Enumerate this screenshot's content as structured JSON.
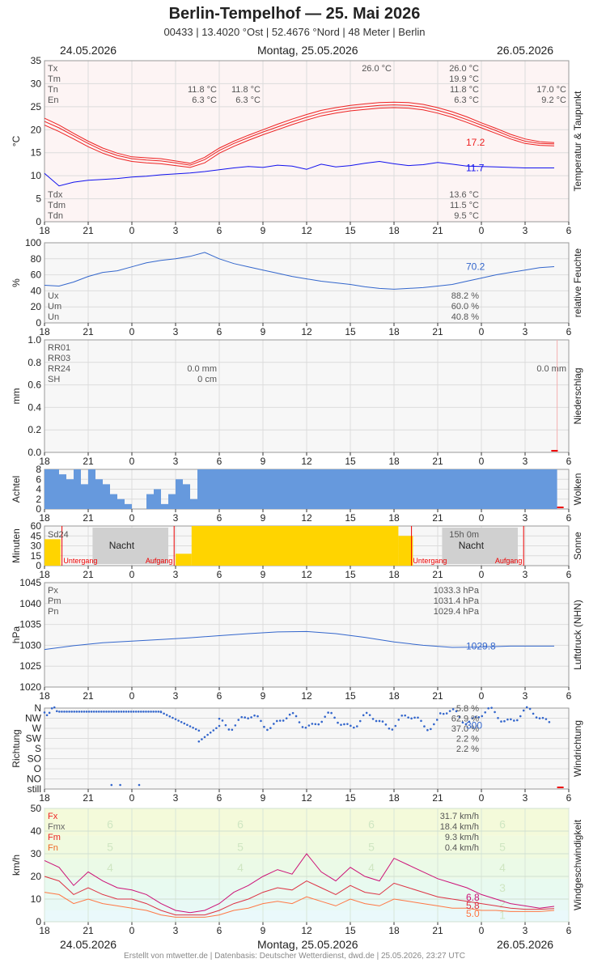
{
  "header": {
    "title": "Berlin-Tempelhof  —  25. Mai 2026",
    "subtitle": "00433  |  13.4020 °Ost  |  52.4676 °Nord  |  48 Meter  |  Berlin",
    "date_left": "24.05.2026",
    "date_center": "Montag, 25.05.2026",
    "date_right": "26.05.2026"
  },
  "footer": {
    "credit": "Erstellt von mtwetter.de | Datenbasis: Deutscher Wetterdienst, dwd.de | 25.05.2026, 23:27 UTC"
  },
  "x_ticks": [
    "18",
    "21",
    "0",
    "3",
    "6",
    "9",
    "12",
    "15",
    "18",
    "21",
    "0",
    "3",
    "6"
  ],
  "colors": {
    "temp": "#ee2222",
    "dew": "#1111ee",
    "blue": "#3366cc",
    "cloud": "#6699dd",
    "sun": "#ffd400",
    "grid": "#dddddd"
  },
  "chart_data": [
    {
      "id": "temperature",
      "type": "line",
      "side_label": "Temperatur & Taupunkt",
      "ylabel": "°C",
      "ylim": [
        0,
        35
      ],
      "y_ticks": [
        "35",
        "30",
        "25",
        "20",
        "15",
        "10",
        "5",
        "0"
      ],
      "x": [
        18,
        19,
        20,
        21,
        22,
        23,
        24,
        25,
        26,
        27,
        28,
        29,
        30,
        31,
        32,
        33,
        34,
        35,
        36,
        37,
        38,
        39,
        40,
        41,
        42,
        43,
        44,
        45,
        46,
        47,
        48,
        49,
        50,
        51,
        52,
        53
      ],
      "series": [
        {
          "name": "Tx",
          "values": [
            22.5,
            21.0,
            19.2,
            17.5,
            16.0,
            14.9,
            14.1,
            13.9,
            13.7,
            13.2,
            12.7,
            14.0,
            16.0,
            17.5,
            18.8,
            20.0,
            21.2,
            22.3,
            23.3,
            24.2,
            24.8,
            25.3,
            25.6,
            25.9,
            26.0,
            25.9,
            25.5,
            24.8,
            23.9,
            22.8,
            21.5,
            20.3,
            19.0,
            18.0,
            17.4,
            17.2
          ]
        },
        {
          "name": "Tm",
          "values": [
            21.8,
            20.4,
            18.7,
            17.0,
            15.5,
            14.4,
            13.7,
            13.4,
            13.2,
            12.8,
            12.3,
            13.5,
            15.5,
            17.0,
            18.3,
            19.5,
            20.6,
            21.7,
            22.7,
            23.6,
            24.2,
            24.7,
            25.0,
            25.3,
            25.4,
            25.3,
            24.9,
            24.2,
            23.3,
            22.2,
            21.0,
            19.8,
            18.5,
            17.5,
            17.0,
            16.9
          ]
        },
        {
          "name": "Tn",
          "values": [
            21.0,
            19.6,
            18.0,
            16.3,
            14.9,
            13.8,
            13.1,
            12.8,
            12.6,
            12.2,
            11.8,
            12.8,
            14.9,
            16.4,
            17.7,
            18.9,
            20.0,
            21.1,
            22.1,
            23.0,
            23.6,
            24.1,
            24.4,
            24.7,
            24.8,
            24.7,
            24.3,
            23.6,
            22.7,
            21.6,
            20.4,
            19.2,
            18.0,
            17.0,
            16.6,
            16.5
          ]
        },
        {
          "name": "Td",
          "values": [
            10.5,
            7.8,
            8.6,
            9.0,
            9.2,
            9.4,
            9.7,
            9.9,
            10.2,
            10.4,
            10.6,
            10.9,
            11.3,
            11.7,
            12.0,
            11.8,
            12.3,
            12.1,
            11.4,
            12.5,
            11.9,
            12.2,
            12.7,
            13.1,
            12.6,
            12.2,
            12.4,
            12.9,
            12.5,
            12.1,
            12.0,
            11.9,
            11.8,
            11.7,
            11.7,
            11.7
          ]
        }
      ],
      "labels_left": [
        "Tx",
        "Tm",
        "Tn",
        "En"
      ],
      "labels_bottom": [
        "Tdx",
        "Tdm",
        "Tdn"
      ],
      "stats": {
        "Tx": "26.0 °C",
        "Tm": "19.9 °C",
        "Tn": "11.8 °C",
        "En": "6.3 °C",
        "Tdx": "13.6 °C",
        "Tdm": "11.5 °C",
        "Tdn": "9.5 °C",
        "tx_time": "26.0 °C",
        "tn_prev": "11.8 °C",
        "tn_cur": "11.8 °C",
        "en_prev": "6.3 °C",
        "en_cur": "6.3 °C",
        "next_tn": "17.0 °C",
        "next_en": "9.2 °C"
      },
      "last_temp": "17.2",
      "last_dew": "11.7"
    },
    {
      "id": "humidity",
      "type": "line",
      "side_label": "relative Feuchte",
      "ylabel": "%",
      "ylim": [
        0,
        100
      ],
      "y_ticks": [
        "100",
        "80",
        "60",
        "40",
        "20",
        "0"
      ],
      "x": [
        18,
        19,
        20,
        21,
        22,
        23,
        24,
        25,
        26,
        27,
        28,
        29,
        30,
        31,
        32,
        33,
        34,
        35,
        36,
        37,
        38,
        39,
        40,
        41,
        42,
        43,
        44,
        45,
        46,
        47,
        48,
        49,
        50,
        51,
        52,
        53
      ],
      "values": [
        47,
        46,
        51,
        58,
        63,
        65,
        70,
        75,
        78,
        80,
        83,
        88,
        80,
        74,
        70,
        66,
        62,
        58,
        55,
        52,
        50,
        48,
        45,
        43,
        42,
        43,
        44,
        46,
        48,
        52,
        56,
        60,
        63,
        66,
        69,
        70.2
      ],
      "labels": [
        "Ux",
        "Um",
        "Un"
      ],
      "stats": {
        "Ux": "88.2 %",
        "Um": "60.0 %",
        "Un": "40.8 %"
      },
      "last": "70.2"
    },
    {
      "id": "precipitation",
      "type": "bar",
      "side_label": "Niederschlag",
      "ylabel": "mm",
      "ylim": [
        0,
        1.0
      ],
      "y_ticks": [
        "1.0",
        "0.8",
        "0.6",
        "0.4",
        "0.2",
        "0.0"
      ],
      "labels": [
        "RR01",
        "RR03",
        "RR24",
        "SH"
      ],
      "stats": {
        "RR24_prev": "0.0 mm",
        "SH_prev": "0 cm",
        "RR24_next": "0.0 mm"
      }
    },
    {
      "id": "clouds",
      "type": "bar",
      "side_label": "Wolken",
      "ylabel": "Achtel",
      "ylim": [
        0,
        8
      ],
      "y_ticks": [
        "8",
        "6",
        "4",
        "2",
        "0"
      ],
      "x": [
        18,
        18.5,
        19,
        19.5,
        20,
        20.5,
        21,
        21.5,
        22,
        22.5,
        23,
        23.5,
        24,
        24.5,
        25,
        25.5,
        26,
        26.5,
        27,
        27.5,
        28,
        28.5,
        29
      ],
      "values": [
        8,
        8,
        7,
        6,
        8,
        5,
        8,
        6,
        5,
        3,
        2,
        1,
        0,
        0,
        3,
        4,
        1,
        3,
        6,
        5,
        2,
        8,
        8
      ]
    },
    {
      "id": "sunshine",
      "type": "bar",
      "side_label": "Sonne",
      "ylabel": "Minuten",
      "ylim": [
        0,
        60
      ],
      "y_ticks": [
        "60",
        "45",
        "30",
        "15",
        "0"
      ],
      "labels": [
        "Sd24"
      ],
      "total": "15h 0m",
      "night_label": "Nacht",
      "sunset_label": "Untergang",
      "sunrise_label": "Aufgang"
    },
    {
      "id": "pressure",
      "type": "line",
      "side_label": "Luftdruck (NHN)",
      "ylabel": "hPa",
      "ylim": [
        1020,
        1045
      ],
      "y_ticks": [
        "1045",
        "1040",
        "1035",
        "1030",
        "1025",
        "1020"
      ],
      "x": [
        18,
        20,
        22,
        24,
        26,
        28,
        30,
        32,
        34,
        36,
        38,
        40,
        42,
        44,
        46,
        48,
        50,
        52,
        53
      ],
      "values": [
        1029.0,
        1029.9,
        1030.6,
        1031.0,
        1031.4,
        1031.8,
        1032.3,
        1032.8,
        1033.2,
        1033.3,
        1032.8,
        1031.9,
        1030.8,
        1030.0,
        1029.5,
        1029.6,
        1029.8,
        1029.8,
        1029.8
      ],
      "labels": [
        "Px",
        "Pm",
        "Pn"
      ],
      "stats": {
        "Px": "1033.3 hPa",
        "Pm": "1031.4 hPa",
        "Pn": "1029.4 hPa"
      },
      "last": "1029.8"
    },
    {
      "id": "wind_direction",
      "type": "scatter",
      "side_label": "Windrichtung",
      "ylabel": "Richtung",
      "y_ticks": [
        "N",
        "NW",
        "W",
        "SW",
        "S",
        "SO",
        "O",
        "NO",
        "still"
      ],
      "stats": [
        "5.8 %",
        "62.9 %",
        "37.0 %",
        "2.2 %",
        "2.2 %"
      ],
      "last": "300"
    },
    {
      "id": "wind_speed",
      "type": "line",
      "side_label": "Windgeschwindigkeit",
      "ylabel": "km/h",
      "ylim": [
        0,
        50
      ],
      "y_ticks": [
        "50",
        "40",
        "30",
        "20",
        "10",
        "0"
      ],
      "x": [
        18,
        19,
        20,
        21,
        22,
        23,
        24,
        25,
        26,
        27,
        28,
        29,
        30,
        31,
        32,
        33,
        34,
        35,
        36,
        37,
        38,
        39,
        40,
        41,
        42,
        43,
        44,
        45,
        46,
        47,
        48,
        49,
        50,
        51,
        52,
        53
      ],
      "series": [
        {
          "name": "Fx",
          "values": [
            27,
            24,
            16,
            22,
            18,
            15,
            14,
            12,
            8,
            5,
            4,
            5,
            8,
            13,
            16,
            20,
            23,
            21,
            30,
            22,
            18,
            24,
            20,
            18,
            28,
            25,
            22,
            19,
            17,
            15,
            12,
            10,
            8,
            7,
            6,
            6.8
          ]
        },
        {
          "name": "Fm",
          "values": [
            20,
            18,
            12,
            15,
            12,
            10,
            10,
            8,
            5,
            3,
            3,
            3,
            5,
            8,
            10,
            13,
            15,
            14,
            18,
            15,
            12,
            16,
            13,
            12,
            17,
            15,
            13,
            11,
            10,
            9,
            8,
            7,
            6,
            5.5,
            5.5,
            5.8
          ]
        },
        {
          "name": "Fn",
          "values": [
            13,
            12,
            8,
            10,
            8,
            7,
            6,
            5,
            3,
            2,
            2,
            2,
            3,
            5,
            6,
            8,
            9,
            8,
            11,
            9,
            7,
            10,
            8,
            7,
            10,
            9,
            8,
            7,
            6,
            6,
            5,
            5,
            4.5,
            4.5,
            4.5,
            5.0
          ]
        }
      ],
      "labels": [
        "Fx",
        "Fmx",
        "Fm",
        "Fn"
      ],
      "stats": {
        "Fx": "31.7 km/h",
        "Fmx": "18.4 km/h",
        "Fm": "9.3 km/h",
        "Fn": "0.4 km/h"
      },
      "bft_labels": [
        "6",
        "5",
        "4",
        "3",
        "2",
        "1"
      ],
      "last": [
        "6.8",
        "5.8",
        "5.0"
      ]
    }
  ]
}
